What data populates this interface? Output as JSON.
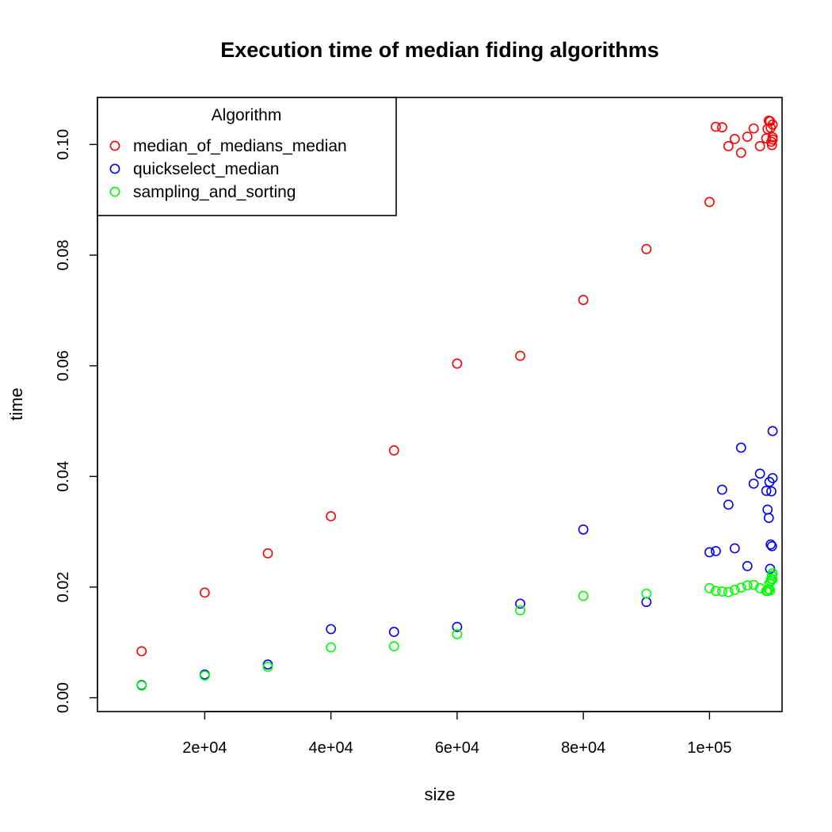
{
  "chart_data": {
    "type": "scatter",
    "title": "Execution time of median fiding algorithms",
    "xlabel": "size",
    "ylabel": "time",
    "xlim": [
      3000,
      111500
    ],
    "ylim": [
      -0.0025,
      0.1085
    ],
    "x_ticks": [
      {
        "value": 20000,
        "label": "2e+04"
      },
      {
        "value": 40000,
        "label": "4e+04"
      },
      {
        "value": 60000,
        "label": "6e+04"
      },
      {
        "value": 80000,
        "label": "8e+04"
      },
      {
        "value": 100000,
        "label": "1e+05"
      }
    ],
    "y_ticks": [
      {
        "value": 0.0,
        "label": "0.00"
      },
      {
        "value": 0.02,
        "label": "0.02"
      },
      {
        "value": 0.04,
        "label": "0.04"
      },
      {
        "value": 0.06,
        "label": "0.06"
      },
      {
        "value": 0.08,
        "label": "0.08"
      },
      {
        "value": 0.1,
        "label": "0.10"
      }
    ],
    "grid": false,
    "legend": {
      "title": "Algorithm",
      "position": "top-left"
    },
    "series": [
      {
        "name": "median_of_medians_median",
        "color": "#ff0000",
        "points": [
          [
            10000,
            0.0084
          ],
          [
            20000,
            0.019
          ],
          [
            30000,
            0.0261
          ],
          [
            40000,
            0.0328
          ],
          [
            50000,
            0.0447
          ],
          [
            60000,
            0.0604
          ],
          [
            70000,
            0.0618
          ],
          [
            80000,
            0.0719
          ],
          [
            90000,
            0.0811
          ],
          [
            100000,
            0.0896
          ],
          [
            101000,
            0.1032
          ],
          [
            102000,
            0.1031
          ],
          [
            103000,
            0.0997
          ],
          [
            104000,
            0.101
          ],
          [
            105000,
            0.0985
          ],
          [
            106000,
            0.1014
          ],
          [
            107000,
            0.1029
          ],
          [
            108000,
            0.0997
          ],
          [
            109000,
            0.1011
          ],
          [
            109200,
            0.1028
          ],
          [
            109400,
            0.1043
          ],
          [
            109600,
            0.1042
          ],
          [
            109700,
            0.103
          ],
          [
            109800,
            0.1005
          ],
          [
            109900,
            0.0999
          ],
          [
            110000,
            0.1013
          ],
          [
            110000,
            0.1036
          ],
          [
            110000,
            0.1009
          ]
        ]
      },
      {
        "name": "quickselect_median",
        "color": "#0000ff",
        "points": [
          [
            10000,
            0.0023
          ],
          [
            20000,
            0.0042
          ],
          [
            30000,
            0.006
          ],
          [
            40000,
            0.0124
          ],
          [
            50000,
            0.0119
          ],
          [
            60000,
            0.0128
          ],
          [
            70000,
            0.017
          ],
          [
            80000,
            0.0304
          ],
          [
            90000,
            0.0173
          ],
          [
            100000,
            0.0263
          ],
          [
            101000,
            0.0265
          ],
          [
            102000,
            0.0376
          ],
          [
            103000,
            0.0349
          ],
          [
            104000,
            0.027
          ],
          [
            105000,
            0.0452
          ],
          [
            106000,
            0.0238
          ],
          [
            107000,
            0.0387
          ],
          [
            108000,
            0.0405
          ],
          [
            109000,
            0.0374
          ],
          [
            109200,
            0.034
          ],
          [
            109400,
            0.0325
          ],
          [
            109500,
            0.039
          ],
          [
            109600,
            0.0233
          ],
          [
            109700,
            0.0277
          ],
          [
            109800,
            0.0373
          ],
          [
            109900,
            0.0274
          ],
          [
            110000,
            0.0482
          ],
          [
            110000,
            0.0397
          ]
        ]
      },
      {
        "name": "sampling_and_sorting",
        "color": "#00ff00",
        "points": [
          [
            10000,
            0.0022
          ],
          [
            20000,
            0.004
          ],
          [
            30000,
            0.0056
          ],
          [
            40000,
            0.0091
          ],
          [
            50000,
            0.0093
          ],
          [
            60000,
            0.0115
          ],
          [
            70000,
            0.0158
          ],
          [
            80000,
            0.0184
          ],
          [
            90000,
            0.0188
          ],
          [
            100000,
            0.0198
          ],
          [
            101000,
            0.0193
          ],
          [
            102000,
            0.0192
          ],
          [
            103000,
            0.0191
          ],
          [
            104000,
            0.0195
          ],
          [
            105000,
            0.0199
          ],
          [
            106000,
            0.0203
          ],
          [
            107000,
            0.0204
          ],
          [
            108000,
            0.0198
          ],
          [
            109000,
            0.0193
          ],
          [
            109200,
            0.0193
          ],
          [
            109400,
            0.0196
          ],
          [
            109500,
            0.0207
          ],
          [
            109600,
            0.0194
          ],
          [
            109700,
            0.0211
          ],
          [
            109800,
            0.0215
          ],
          [
            109900,
            0.0221
          ],
          [
            110000,
            0.0225
          ],
          [
            110000,
            0.0214
          ]
        ]
      }
    ]
  }
}
